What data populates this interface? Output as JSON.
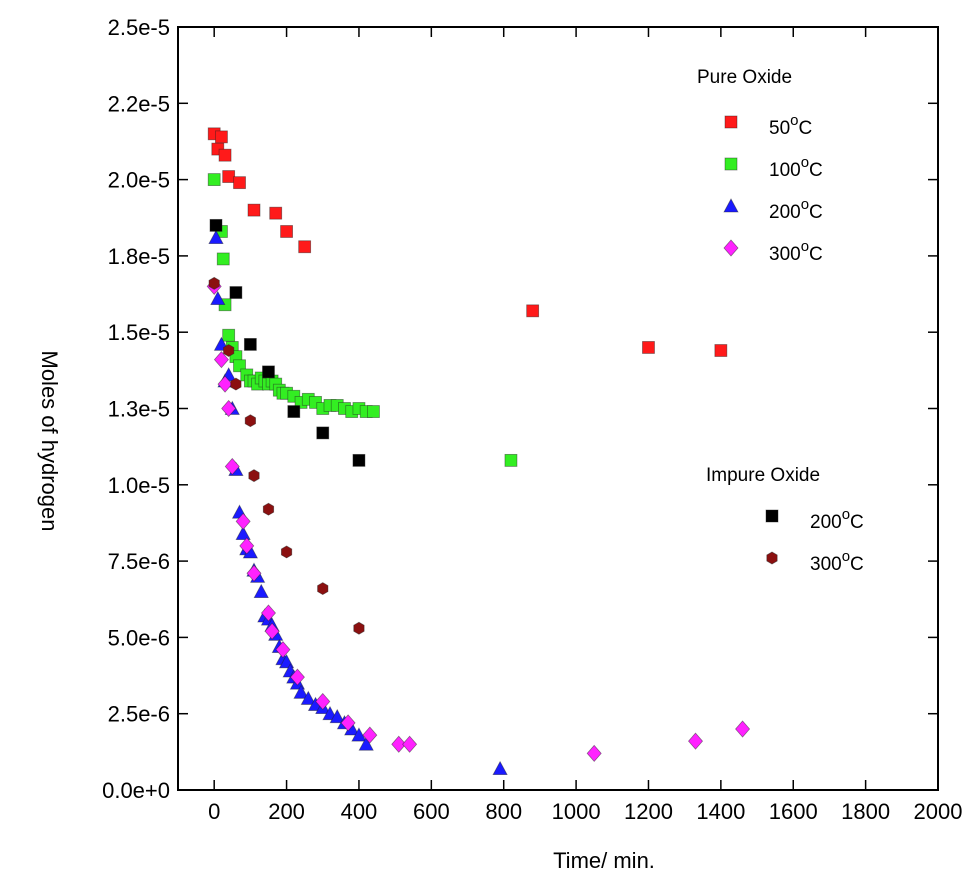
{
  "chart_data": {
    "type": "scatter",
    "xlabel": "Time/ min.",
    "ylabel": "Moles of hydrogen",
    "xlim": [
      -100,
      2000
    ],
    "ylim": [
      0,
      2.5e-05
    ],
    "x_ticks": [
      0,
      200,
      400,
      600,
      800,
      1000,
      1200,
      1400,
      1600,
      1800,
      2000
    ],
    "y_ticks": [
      0,
      2.5e-06,
      5e-06,
      7.5e-06,
      1e-05,
      1.25e-05,
      1.5e-05,
      1.75e-05,
      2e-05,
      2.25e-05,
      2.5e-05
    ],
    "x_tick_labels": [
      "0",
      "200",
      "400",
      "600",
      "800",
      "1000",
      "1200",
      "1400",
      "1600",
      "1800",
      "2000"
    ],
    "y_tick_labels": [
      "0.0e+0",
      "2.5e-6",
      "5.0e-6",
      "7.5e-6",
      "1.0e-5",
      "1.3e-5",
      "1.5e-5",
      "1.8e-5",
      "2.0e-5",
      "2.2e-5",
      "2.5e-5"
    ],
    "legend_groups": [
      {
        "title": "Pure Oxide",
        "placement": "top-right"
      },
      {
        "title": "Impure Oxide",
        "placement": "right"
      }
    ],
    "series": [
      {
        "name": "50°C",
        "label_main": "50",
        "label_sup": "o",
        "label_unit": "C",
        "group": 0,
        "color": "#ff1a1a",
        "marker": "square",
        "x": [
          0,
          10,
          20,
          30,
          40,
          70,
          110,
          170,
          200,
          250,
          880,
          1200,
          1400
        ],
        "y": [
          2.15e-05,
          2.1e-05,
          2.14e-05,
          2.08e-05,
          2.01e-05,
          1.99e-05,
          1.9e-05,
          1.89e-05,
          1.83e-05,
          1.78e-05,
          1.57e-05,
          1.45e-05,
          1.44e-05
        ]
      },
      {
        "name": "100°C",
        "label_main": "100",
        "label_sup": "o",
        "label_unit": "C",
        "group": 0,
        "color": "#33ee22",
        "marker": "square",
        "x": [
          0,
          20,
          25,
          30,
          40,
          50,
          60,
          70,
          90,
          100,
          110,
          120,
          130,
          140,
          150,
          160,
          170,
          180,
          190,
          200,
          220,
          240,
          260,
          280,
          300,
          320,
          340,
          360,
          380,
          400,
          420,
          440,
          820
        ],
        "y": [
          2e-05,
          1.83e-05,
          1.74e-05,
          1.59e-05,
          1.49e-05,
          1.45e-05,
          1.42e-05,
          1.39e-05,
          1.36e-05,
          1.34e-05,
          1.34e-05,
          1.33e-05,
          1.35e-05,
          1.34e-05,
          1.33e-05,
          1.34e-05,
          1.33e-05,
          1.31e-05,
          1.3e-05,
          1.3e-05,
          1.29e-05,
          1.27e-05,
          1.28e-05,
          1.27e-05,
          1.25e-05,
          1.26e-05,
          1.26e-05,
          1.25e-05,
          1.24e-05,
          1.25e-05,
          1.24e-05,
          1.24e-05,
          1.08e-05
        ]
      },
      {
        "name": "200°C",
        "label_main": "200",
        "label_sup": "o",
        "label_unit": "C",
        "group": 0,
        "color": "#1a1aff",
        "marker": "triangle",
        "x": [
          5,
          10,
          20,
          30,
          40,
          50,
          60,
          70,
          80,
          90,
          100,
          110,
          120,
          130,
          140,
          150,
          160,
          170,
          180,
          190,
          200,
          210,
          220,
          230,
          240,
          260,
          280,
          300,
          320,
          340,
          360,
          380,
          400,
          420,
          790
        ],
        "y": [
          1.81e-05,
          1.61e-05,
          1.46e-05,
          1.34e-05,
          1.36e-05,
          1.25e-05,
          1.05e-05,
          9.1e-06,
          8.4e-06,
          7.9e-06,
          7.8e-06,
          7.2e-06,
          7e-06,
          6.5e-06,
          5.7e-06,
          5.6e-06,
          5.4e-06,
          5.1e-06,
          4.7e-06,
          4.3e-06,
          4.2e-06,
          3.9e-06,
          3.7e-06,
          3.5e-06,
          3.2e-06,
          3e-06,
          2.8e-06,
          2.7e-06,
          2.5e-06,
          2.4e-06,
          2.2e-06,
          2e-06,
          1.8e-06,
          1.5e-06,
          7e-07
        ]
      },
      {
        "name": "300°C",
        "label_main": "300",
        "label_sup": "o",
        "label_unit": "C",
        "group": 0,
        "color": "#ff22ff",
        "marker": "diamond",
        "x": [
          0,
          20,
          30,
          40,
          50,
          80,
          90,
          110,
          150,
          160,
          190,
          230,
          300,
          370,
          430,
          510,
          540,
          1050,
          1330,
          1460
        ],
        "y": [
          1.65e-05,
          1.41e-05,
          1.33e-05,
          1.25e-05,
          1.06e-05,
          8.8e-06,
          8e-06,
          7.1e-06,
          5.8e-06,
          5.2e-06,
          4.6e-06,
          3.7e-06,
          2.9e-06,
          2.2e-06,
          1.8e-06,
          1.5e-06,
          1.5e-06,
          1.2e-06,
          1.6e-06,
          2e-06
        ]
      },
      {
        "name": "200°C",
        "label_main": "200",
        "label_sup": "o",
        "label_unit": "C",
        "group": 1,
        "color": "#000000",
        "marker": "square",
        "x": [
          5,
          60,
          100,
          150,
          220,
          300,
          400
        ],
        "y": [
          1.85e-05,
          1.63e-05,
          1.46e-05,
          1.37e-05,
          1.24e-05,
          1.17e-05,
          1.08e-05
        ]
      },
      {
        "name": "300°C",
        "label_main": "300",
        "label_sup": "o",
        "label_unit": "C",
        "group": 1,
        "color": "#8b1010",
        "marker": "hexagon",
        "x": [
          0,
          40,
          60,
          100,
          110,
          150,
          200,
          300,
          400
        ],
        "y": [
          1.66e-05,
          1.44e-05,
          1.33e-05,
          1.21e-05,
          1.03e-05,
          9.2e-06,
          7.8e-06,
          6.6e-06,
          5.3e-06
        ]
      }
    ]
  }
}
